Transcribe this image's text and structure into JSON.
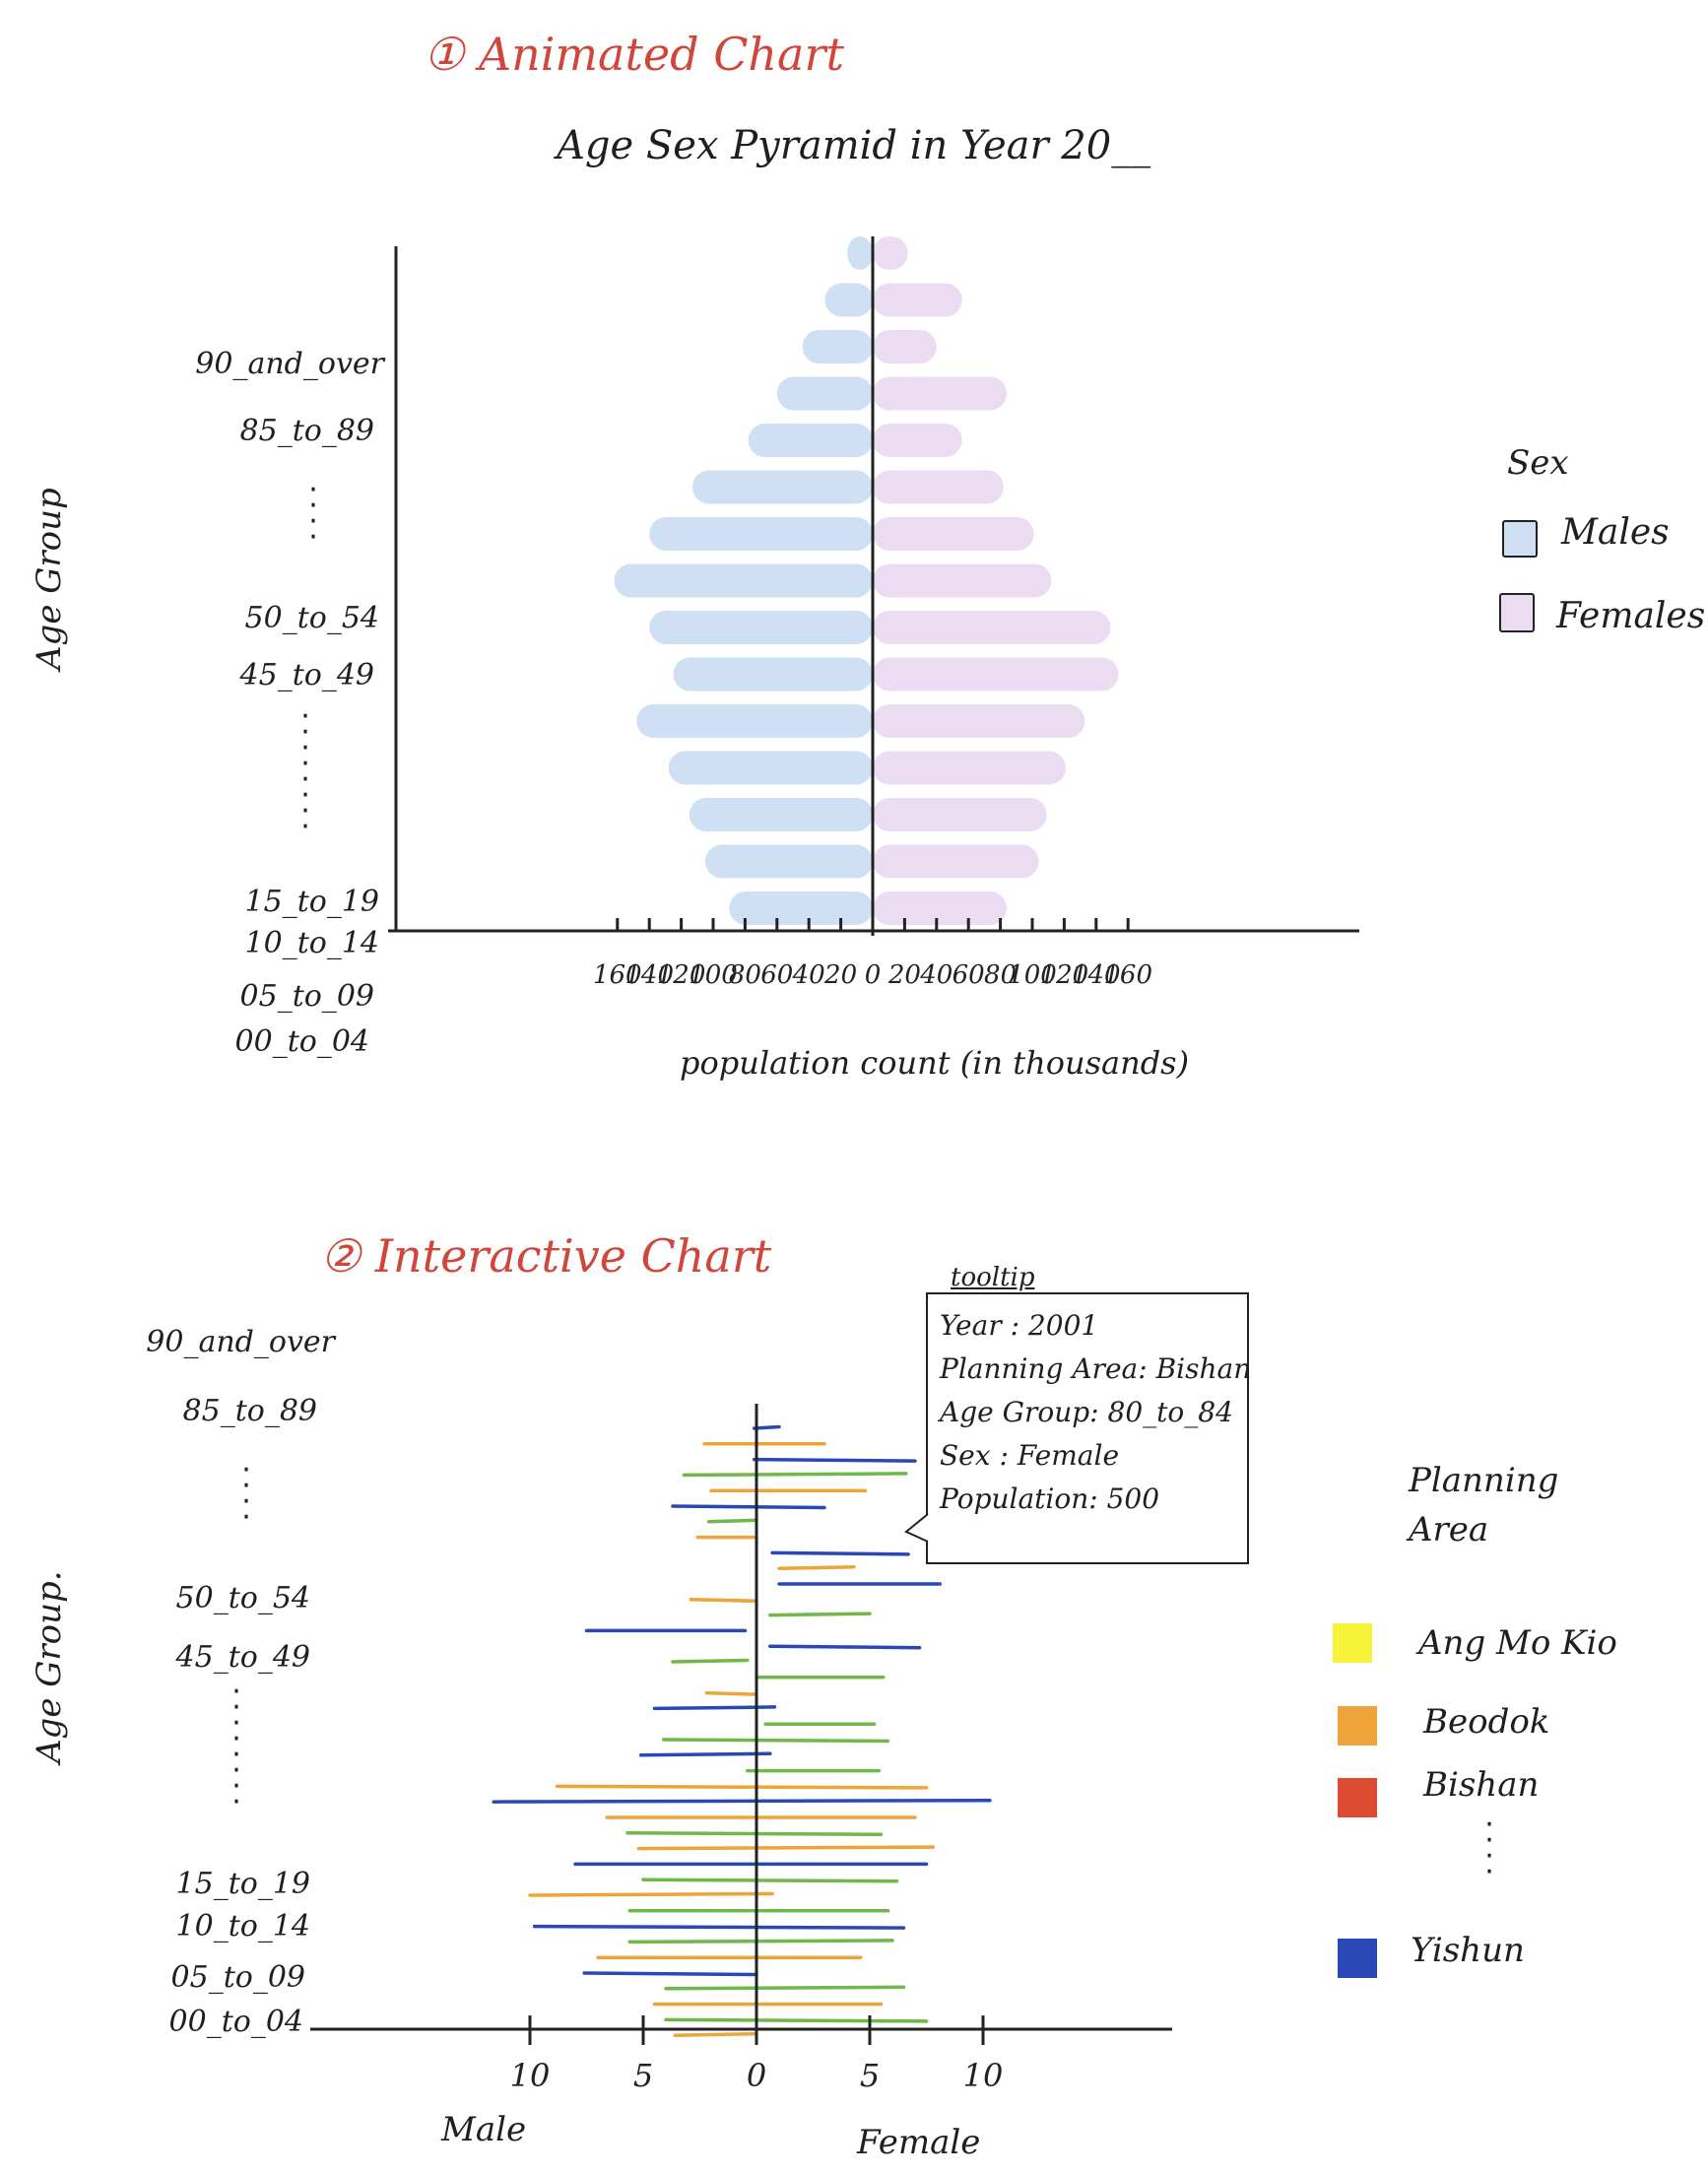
{
  "chart_data": [
    {
      "type": "bar",
      "heading": "① Animated Chart",
      "title": "Age Sex Pyramid in Year 20__",
      "ylabel": "Age Group",
      "xlabel": "population count (in thousands)",
      "x_ticks_left": [
        "160",
        "140",
        "120",
        "100",
        "80",
        "60",
        "40",
        "20"
      ],
      "x_tick_zero": "0",
      "x_ticks_right": [
        "20",
        "40",
        "60",
        "80",
        "100",
        "120",
        "140",
        "160"
      ],
      "xlim": [
        -160,
        160
      ],
      "age_labels": [
        "90_and_over",
        "85_to_89",
        "50_to_54",
        "45_to_49",
        "15_to_19",
        "10_to_14",
        "05_to_09",
        "00_to_04"
      ],
      "legend_title": "Sex",
      "series": [
        {
          "name": "Males",
          "color": "#cfe0f5",
          "values": [
            -16,
            -30,
            -44,
            -60,
            -78,
            -113,
            -140,
            -162,
            -140,
            -125,
            -148,
            -128,
            -115,
            -105,
            -90
          ]
        },
        {
          "name": "Females",
          "color": "#ecdcf2",
          "values": [
            22,
            56,
            40,
            84,
            56,
            82,
            101,
            112,
            149,
            154,
            133,
            121,
            109,
            104,
            84
          ]
        }
      ]
    },
    {
      "type": "bar",
      "heading": "② Interactive Chart",
      "ylabel": "Age Group.",
      "x_ticks": [
        "10",
        "5",
        "0",
        "5",
        "10"
      ],
      "x_tick_values": [
        -10,
        -5,
        0,
        5,
        10
      ],
      "xlim": [
        -16,
        16
      ],
      "male_label": "Male",
      "female_label": "Female",
      "age_labels": [
        "90_and_over",
        "85_to_89",
        "50_to_54",
        "45_to_49",
        "15_to_19",
        "10_to_14",
        "05_to_09",
        "00_to_04"
      ],
      "legend_title": "Planning Area",
      "legend": [
        {
          "name": "Ang Mo Kio",
          "color": "#f7f23a"
        },
        {
          "name": "Beodok",
          "color": "#eea43a"
        },
        {
          "name": "Bishan",
          "color": "#dc4b32"
        },
        {
          "name": "Yishun",
          "color": "#2a48b5"
        }
      ],
      "lines": [
        {
          "c": "#2a48b5",
          "l": -0.1,
          "r": 1.0
        },
        {
          "c": "#eea43a",
          "l": -2.3,
          "r": 3.0
        },
        {
          "c": "#2a48b5",
          "l": -0.1,
          "r": 7.0
        },
        {
          "c": "#6fb84a",
          "l": -3.2,
          "r": 6.6
        },
        {
          "c": "#eea43a",
          "l": -2.0,
          "r": 4.8
        },
        {
          "c": "#2a48b5",
          "l": -3.7,
          "r": 3.0
        },
        {
          "c": "#6fb84a",
          "l": -2.1,
          "r": 0.0
        },
        {
          "c": "#eea43a",
          "l": -2.6,
          "r": 0.0
        },
        {
          "c": "#2a48b5",
          "l": 0.7,
          "r": 6.7
        },
        {
          "c": "#eea43a",
          "l": 1.0,
          "r": 4.3
        },
        {
          "c": "#2a48b5",
          "l": 1.0,
          "r": 8.1
        },
        {
          "c": "#eea43a",
          "l": -2.9,
          "r": 0.0
        },
        {
          "c": "#6fb84a",
          "l": 0.6,
          "r": 5.0
        },
        {
          "c": "#2a48b5",
          "l": -7.5,
          "r": -0.5
        },
        {
          "c": "#2a48b5",
          "l": 0.6,
          "r": 7.2
        },
        {
          "c": "#6fb84a",
          "l": -3.7,
          "r": -0.4
        },
        {
          "c": "#6fb84a",
          "l": 0.0,
          "r": 5.6
        },
        {
          "c": "#eea43a",
          "l": -2.2,
          "r": 0.0
        },
        {
          "c": "#2a48b5",
          "l": -4.5,
          "r": 0.8
        },
        {
          "c": "#6fb84a",
          "l": 0.4,
          "r": 5.2
        },
        {
          "c": "#6fb84a",
          "l": -4.1,
          "r": 5.8
        },
        {
          "c": "#2a48b5",
          "l": -5.1,
          "r": 0.6
        },
        {
          "c": "#6fb84a",
          "l": -0.4,
          "r": 5.4
        },
        {
          "c": "#eea43a",
          "l": -8.8,
          "r": 7.5
        },
        {
          "c": "#2a48b5",
          "l": -11.6,
          "r": 10.3
        },
        {
          "c": "#eea43a",
          "l": -6.6,
          "r": 7.0
        },
        {
          "c": "#6fb84a",
          "l": -5.7,
          "r": 5.5
        },
        {
          "c": "#eea43a",
          "l": -5.2,
          "r": 7.8
        },
        {
          "c": "#2a48b5",
          "l": -8.0,
          "r": 7.5
        },
        {
          "c": "#6fb84a",
          "l": -5.0,
          "r": 6.2
        },
        {
          "c": "#eea43a",
          "l": -10.0,
          "r": 0.7
        },
        {
          "c": "#6fb84a",
          "l": -5.6,
          "r": 5.8
        },
        {
          "c": "#2a48b5",
          "l": -9.8,
          "r": 6.5
        },
        {
          "c": "#6fb84a",
          "l": -5.6,
          "r": 6.0
        },
        {
          "c": "#eea43a",
          "l": -7.0,
          "r": 4.6
        },
        {
          "c": "#2a48b5",
          "l": -7.6,
          "r": 0.0
        },
        {
          "c": "#6fb84a",
          "l": -4.0,
          "r": 6.5
        },
        {
          "c": "#eea43a",
          "l": -4.5,
          "r": 5.5
        },
        {
          "c": "#6fb84a",
          "l": -4.0,
          "r": 7.5
        },
        {
          "c": "#eea43a",
          "l": -3.6,
          "r": 0.0
        }
      ],
      "tooltip": {
        "title": "tooltip",
        "lines": [
          "Year : 2001",
          "Planning Area: Bishan",
          "Age Group: 80_to_84",
          "Sex : Female",
          "Population: 500"
        ]
      }
    }
  ]
}
